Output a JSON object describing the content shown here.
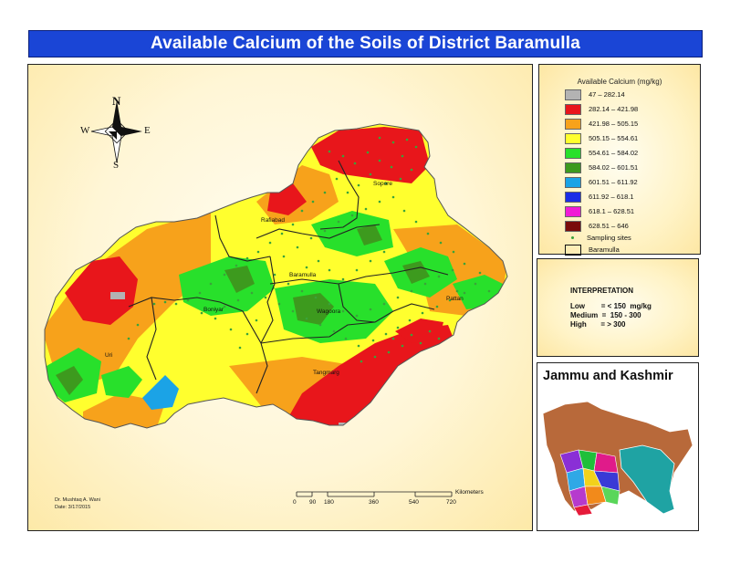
{
  "title": "Available Calcium of the Soils of District Baramulla",
  "compass": {
    "n": "N",
    "s": "S",
    "e": "E",
    "w": "W"
  },
  "places": {
    "sopore": "Sopore",
    "rafiabad": "Rafiabad",
    "baramulla": "Baramulla",
    "boniyar": "Boniyar",
    "wagoora": "Wagoora",
    "pattan": "Pattan",
    "uri": "Uri",
    "tangmarg": "Tangmarg"
  },
  "legend": {
    "title": "Available Calcium (mg/kg)",
    "classes": [
      {
        "label": "47 – 282.14",
        "color": "#b3b3b3"
      },
      {
        "label": "282.14 – 421.98",
        "color": "#e8161b"
      },
      {
        "label": "421.98 – 505.15",
        "color": "#f7a21b"
      },
      {
        "label": "505.15 – 554.61",
        "color": "#ffff2e"
      },
      {
        "label": "554.61 – 584.02",
        "color": "#28e02b"
      },
      {
        "label": "584.02 – 601.51",
        "color": "#3d9a1e"
      },
      {
        "label": "601.51 – 611.92",
        "color": "#1ba3e6"
      },
      {
        "label": "611.92 – 618.1",
        "color": "#1b2de6"
      },
      {
        "label": "618.1 – 628.51",
        "color": "#f01bd6"
      },
      {
        "label": "628.51 – 646",
        "color": "#7a0b0b"
      }
    ],
    "sampling": "Sampling sites",
    "boundary": "Baramulla"
  },
  "interpretation": {
    "title": "INTERPRETATION",
    "rows": [
      "Low        = < 150  mg/kg",
      "Medium  =  150 - 300",
      "High       = > 300"
    ]
  },
  "inset": {
    "title": "Jammu and Kashmir"
  },
  "scale": {
    "ticks": [
      "0",
      "90",
      "180",
      "360",
      "540",
      "720"
    ],
    "unit": "Kilometers"
  },
  "credit": {
    "author": "Dr. Mushtaq A. Wani",
    "date": "Date: 3/17/2015"
  }
}
